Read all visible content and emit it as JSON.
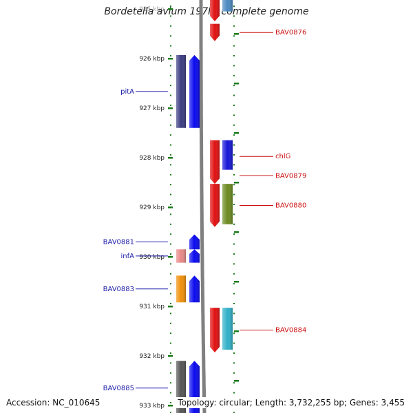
{
  "title": "Bordetella avium 197N, complete genome",
  "footer": {
    "accession": "Accession: NC_010645",
    "summary": "Topology: circular; Length: 3,732,255 bp; Genes: 3,455"
  },
  "ruler": {
    "unit": "kbp",
    "ticks": [
      {
        "kbp": 925,
        "label": "925 kbp"
      },
      {
        "kbp": 926,
        "label": "926 kbp"
      },
      {
        "kbp": 927,
        "label": "927 kbp"
      },
      {
        "kbp": 928,
        "label": "928 kbp"
      },
      {
        "kbp": 929,
        "label": "929 kbp"
      },
      {
        "kbp": 930,
        "label": "930 kbp"
      },
      {
        "kbp": 931,
        "label": "931 kbp"
      },
      {
        "kbp": 932,
        "label": "932 kbp"
      },
      {
        "kbp": 933,
        "label": "933 kbp"
      }
    ]
  },
  "colors": {
    "backbone": "#808080",
    "tick_green": "#1a7a1a",
    "left_label": "#1a1aa8",
    "right_label": "#cc1111"
  },
  "genes": [
    {
      "id": "top-red",
      "strand": "plus",
      "start": 924.8,
      "end": 925.25,
      "color": "#e01010",
      "arrow": "down"
    },
    {
      "id": "top-blue",
      "strand": "plus_cog",
      "start": 924.8,
      "end": 925.05,
      "color": "#4a88c0",
      "arrow": "none"
    },
    {
      "id": "BAV0876",
      "label": "BAV0876",
      "strand": "plus",
      "start": 925.3,
      "end": 925.65,
      "color": "#e01010",
      "arrow": "down"
    },
    {
      "id": "pitA",
      "label": "pitA",
      "strand": "minus",
      "start": 925.93,
      "end": 927.4,
      "color": "#0a0aee",
      "cog_color": "#3c3c82",
      "arrow": "up"
    },
    {
      "id": "chlG",
      "label": "chlG",
      "strand": "plus",
      "start": 927.65,
      "end": 928.3,
      "color": "#e01010",
      "cog_color": "#1515d8",
      "arrow": "down"
    },
    {
      "id": "BAV0879",
      "label": "BAV0879",
      "strand": "plus",
      "start": 928.2,
      "end": 928.53,
      "color": "#e01010",
      "arrow": "down"
    },
    {
      "id": "BAV0880",
      "label": "BAV0880",
      "strand": "plus",
      "start": 928.53,
      "end": 929.4,
      "color": "#e01010",
      "cog_color": "#6b8a20",
      "arrow": "down"
    },
    {
      "id": "BAV0881",
      "label": "BAV0881",
      "strand": "minus",
      "start": 929.55,
      "end": 929.85,
      "color": "#0a0aee",
      "arrow": "up"
    },
    {
      "id": "infA",
      "label": "infA",
      "strand": "minus",
      "start": 929.85,
      "end": 930.12,
      "color": "#0a0aee",
      "cog_color": "#e88888",
      "arrow": "up"
    },
    {
      "id": "BAV0883",
      "label": "BAV0883",
      "strand": "minus",
      "start": 930.38,
      "end": 930.92,
      "color": "#0a0aee",
      "cog_color": "#f0900a",
      "arrow": "up"
    },
    {
      "id": "BAV0884",
      "label": "BAV0884",
      "strand": "plus",
      "start": 931.03,
      "end": 931.93,
      "color": "#e01010",
      "cog_color": "#30b0c8",
      "arrow": "down"
    },
    {
      "id": "BAV0885",
      "label": "BAV0885",
      "strand": "minus",
      "start": 932.1,
      "end": 933.2,
      "color": "#0a0aee",
      "cog_color": "#555555",
      "arrow": "up"
    }
  ]
}
